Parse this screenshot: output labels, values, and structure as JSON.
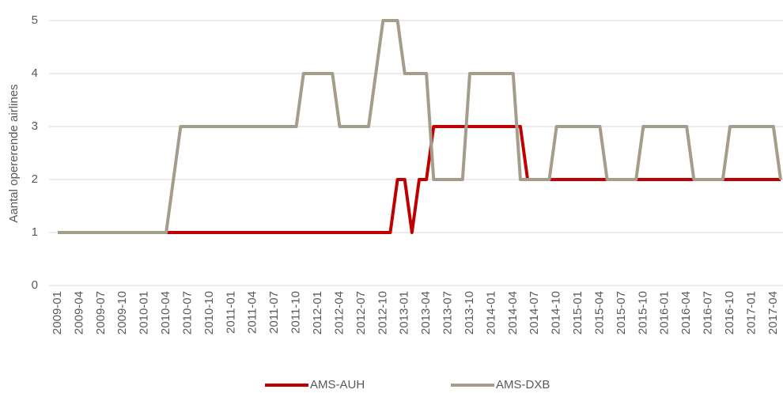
{
  "chart_data": {
    "type": "line",
    "y_label": "Aantal opererende airlines",
    "categories": [
      "2009-01",
      null,
      null,
      "2009-04",
      null,
      null,
      "2009-07",
      null,
      null,
      "2009-10",
      null,
      null,
      "2010-01",
      null,
      null,
      "2010-04",
      null,
      null,
      "2010-07",
      null,
      null,
      "2010-10",
      null,
      null,
      "2011-01",
      null,
      null,
      "2011-04",
      null,
      null,
      "2011-07",
      null,
      null,
      "2011-10",
      null,
      null,
      "2012-01",
      null,
      null,
      "2012-04",
      null,
      null,
      "2012-07",
      null,
      null,
      "2012-10",
      null,
      null,
      "2013-01",
      null,
      null,
      "2013-04",
      null,
      null,
      "2013-07",
      null,
      null,
      "2013-10",
      null,
      null,
      "2014-01",
      null,
      null,
      "2014-04",
      null,
      null,
      "2014-07",
      null,
      null,
      "2014-10",
      null,
      null,
      "2015-01",
      null,
      null,
      "2015-04",
      null,
      null,
      "2015-07",
      null,
      null,
      "2015-10",
      null,
      null,
      "2016-01",
      null,
      null,
      "2016-04",
      null,
      null,
      "2016-07",
      null,
      null,
      "2016-10",
      null,
      null,
      "2017-01",
      null,
      null,
      "2017-04",
      null
    ],
    "series": [
      {
        "name": "AMS-AUH",
        "color": "#c00000",
        "values": [
          1,
          1,
          1,
          1,
          1,
          1,
          1,
          1,
          1,
          1,
          1,
          1,
          1,
          1,
          1,
          1,
          1,
          1,
          1,
          1,
          1,
          1,
          1,
          1,
          1,
          1,
          1,
          1,
          1,
          1,
          1,
          1,
          1,
          1,
          1,
          1,
          1,
          1,
          1,
          1,
          1,
          1,
          1,
          1,
          1,
          1,
          1,
          2,
          2,
          1,
          2,
          2,
          3,
          3,
          3,
          3,
          3,
          3,
          3,
          3,
          3,
          3,
          3,
          3,
          3,
          2,
          2,
          2,
          2,
          2,
          2,
          2,
          2,
          2,
          2,
          2,
          2,
          2,
          2,
          2,
          2,
          2,
          2,
          2,
          2,
          2,
          2,
          2,
          2,
          2,
          2,
          2,
          2,
          2,
          2,
          2,
          2,
          2,
          2,
          2,
          2
        ]
      },
      {
        "name": "AMS-DXB",
        "color": "#a59d8c",
        "values": [
          1,
          1,
          1,
          1,
          1,
          1,
          1,
          1,
          1,
          1,
          1,
          1,
          1,
          1,
          1,
          1,
          2,
          3,
          3,
          3,
          3,
          3,
          3,
          3,
          3,
          3,
          3,
          3,
          3,
          3,
          3,
          3,
          3,
          3,
          4,
          4,
          4,
          4,
          4,
          3,
          3,
          3,
          3,
          3,
          4,
          5,
          5,
          5,
          4,
          4,
          4,
          4,
          2,
          2,
          2,
          2,
          2,
          4,
          4,
          4,
          4,
          4,
          4,
          4,
          2,
          2,
          2,
          2,
          2,
          3,
          3,
          3,
          3,
          3,
          3,
          3,
          2,
          2,
          2,
          2,
          2,
          3,
          3,
          3,
          3,
          3,
          3,
          3,
          2,
          2,
          2,
          2,
          2,
          3,
          3,
          3,
          3,
          3,
          3,
          3,
          2
        ]
      }
    ],
    "ylim": [
      0,
      5
    ],
    "yticks": [
      0,
      1,
      2,
      3,
      4,
      5
    ],
    "grid": true,
    "legend": "bottom"
  }
}
